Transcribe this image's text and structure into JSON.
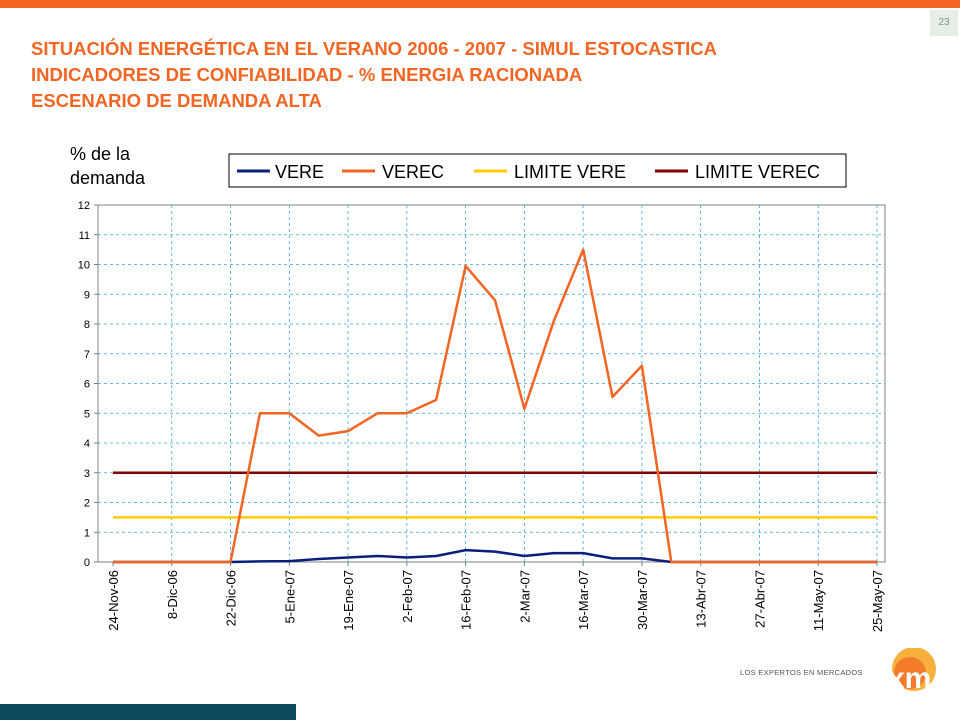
{
  "page": {
    "number": "23",
    "title_lines": [
      "SITUACIÓN ENERGÉTICA EN EL VERANO 2006 - 2007 - SIMUL ESTOCASTICA",
      "INDICADORES DE CONFIABILIDAD - % ENERGIA RACIONADA",
      "ESCENARIO DE DEMANDA ALTA"
    ],
    "logo_text": "LOS EXPERTOS EN MERCADOS",
    "logo_mark": "xm",
    "colors": {
      "accent": "#f26522",
      "footer": "#0d4a5c"
    }
  },
  "chart_data": {
    "type": "line",
    "ylabel_lines": [
      "%  de la",
      "demanda"
    ],
    "ylim": [
      0,
      12
    ],
    "yticks": [
      0,
      1,
      2,
      3,
      4,
      5,
      6,
      7,
      8,
      9,
      10,
      11,
      12
    ],
    "grid": true,
    "legend_position": "top",
    "x_tick_labels": [
      "24-Nov-06",
      "8-Dic-06",
      "22-Dic-06",
      "5-Ene-07",
      "19-Ene-07",
      "2-Feb-07",
      "16-Feb-07",
      "2-Mar-07",
      "16-Mar-07",
      "30-Mar-07",
      "13-Abr-07",
      "27-Abr-07",
      "11-May-07",
      "25-May-07"
    ],
    "x_dates": [
      "24-Nov-06",
      "1-Dic-06",
      "8-Dic-06",
      "15-Dic-06",
      "22-Dic-06",
      "29-Dic-06",
      "5-Ene-07",
      "12-Ene-07",
      "19-Ene-07",
      "26-Ene-07",
      "2-Feb-07",
      "9-Feb-07",
      "16-Feb-07",
      "23-Feb-07",
      "2-Mar-07",
      "9-Mar-07",
      "16-Mar-07",
      "23-Mar-07",
      "30-Mar-07",
      "6-Abr-07",
      "13-Abr-07",
      "20-Abr-07",
      "27-Abr-07",
      "4-May-07",
      "11-May-07",
      "18-May-07",
      "25-May-07"
    ],
    "series": [
      {
        "name": "VERE",
        "color": "#0a1f7a",
        "values": [
          0,
          0,
          0,
          0,
          0,
          0.02,
          0.03,
          0.1,
          0.15,
          0.2,
          0.15,
          0.2,
          0.4,
          0.35,
          0.2,
          0.3,
          0.3,
          0.12,
          0.12,
          0,
          0,
          0,
          0,
          0,
          0,
          0,
          0
        ]
      },
      {
        "name": "VEREC",
        "color": "#f26522",
        "values": [
          0,
          0,
          0,
          0,
          0,
          5.0,
          5.0,
          4.25,
          4.4,
          5.0,
          5.0,
          5.45,
          9.95,
          8.8,
          5.15,
          8.1,
          10.5,
          5.55,
          6.6,
          0,
          0,
          0,
          0,
          0,
          0,
          0,
          0
        ]
      },
      {
        "name": "LIMITE VERE",
        "color": "#ffcc00",
        "values": [
          1.5,
          1.5,
          1.5,
          1.5,
          1.5,
          1.5,
          1.5,
          1.5,
          1.5,
          1.5,
          1.5,
          1.5,
          1.5,
          1.5,
          1.5,
          1.5,
          1.5,
          1.5,
          1.5,
          1.5,
          1.5,
          1.5,
          1.5,
          1.5,
          1.5,
          1.5,
          1.5
        ]
      },
      {
        "name": "LIMITE VEREC",
        "color": "#800000",
        "values": [
          3,
          3,
          3,
          3,
          3,
          3,
          3,
          3,
          3,
          3,
          3,
          3,
          3,
          3,
          3,
          3,
          3,
          3,
          3,
          3,
          3,
          3,
          3,
          3,
          3,
          3,
          3
        ]
      }
    ]
  }
}
